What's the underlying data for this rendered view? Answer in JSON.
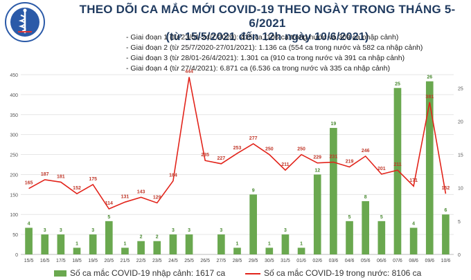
{
  "header": {
    "title": "THEO DÕI CA MẮC MỚI COVID-19 THEO NGÀY TRONG THÁNG 5-6/2021",
    "subtitle": "(từ 15/5/2021 đến 12h ngày 10/6/2021)",
    "logo_text": "BỘ Y TẾ",
    "logo_subtext": "MINISTRY OF HEALTH"
  },
  "phases": [
    "- Giai đoạn 1 (từ 23/01-24/7/2020): 415 ca (106 ca trong nước và 309 ca nhập cảnh)",
    "- Giai đoạn 2 (từ 25/7/2020-27/01/2021): 1.136 ca (554 ca trong nước và 582 ca nhập cảnh)",
    "- Giai đoạn 3 (từ 28/01-26/4/2021): 1.301 ca (910 ca trong nước và 391 ca nhập cảnh)",
    "- Giai đoạn 4 (từ 27/4/2021): 6.871 ca (6.536 ca trong nước và 335 ca nhập cảnh)"
  ],
  "legend": {
    "bar_label": "Số ca mắc COVID-19 nhập cảnh: 1617 ca",
    "line_label": "Số ca mắc COVID-19 trong nước: 8106 ca"
  },
  "colors": {
    "bar": "#6aa84f",
    "line": "#e2231a",
    "title": "#1f3a5f",
    "grid": "#e6e6e6"
  },
  "chart_data": {
    "type": "bar+line",
    "categories": [
      "15/5",
      "16/5",
      "17/5",
      "18/5",
      "19/5",
      "20/5",
      "21/5",
      "22/5",
      "23/5",
      "24/5",
      "25/5",
      "26/5",
      "27/5",
      "28/5",
      "29/5",
      "30/5",
      "31/5",
      "01/6",
      "02/6",
      "03/6",
      "04/6",
      "05/6",
      "06/6",
      "07/6",
      "08/6",
      "09/6",
      "10/6"
    ],
    "series": [
      {
        "name": "Số ca mắc COVID-19 nhập cảnh: 1617 ca",
        "type": "bar",
        "axis": "right",
        "values": [
          4,
          3,
          3,
          1,
          3,
          5,
          1,
          2,
          2,
          3,
          3,
          null,
          3,
          1,
          9,
          1,
          3,
          1,
          12,
          19,
          5,
          8,
          5,
          25,
          4,
          26,
          6
        ]
      },
      {
        "name": "Số ca mắc COVID-19 trong nước: 8106 ca",
        "type": "line",
        "axis": "left",
        "values": [
          165,
          187,
          181,
          152,
          175,
          114,
          131,
          143,
          129,
          184,
          444,
          235,
          227,
          253,
          277,
          250,
          211,
          250,
          229,
          231,
          219,
          246,
          201,
          211,
          171,
          381,
          152
        ]
      }
    ],
    "y_left": {
      "range": [
        0,
        450
      ],
      "ticks": [
        0,
        50,
        100,
        150,
        200,
        250,
        300,
        350,
        400,
        450
      ]
    },
    "y_right": {
      "range": [
        0,
        27
      ],
      "ticks": [
        0,
        5,
        10,
        15,
        20,
        25
      ]
    },
    "grid": true,
    "legend_position": "bottom"
  }
}
